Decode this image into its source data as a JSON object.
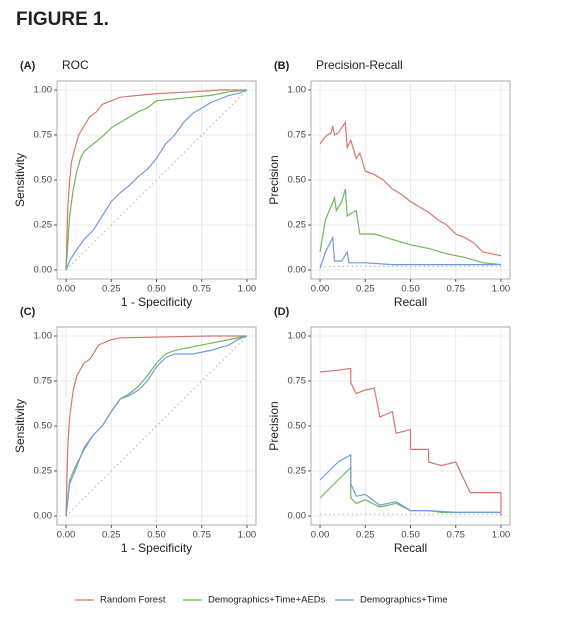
{
  "figure_title": "FIGURE 1.",
  "chart_data": [
    {
      "type": "line",
      "tag": "(A)",
      "title": "ROC",
      "x_label": "1 - Specificity",
      "y_label": "Sensitivity",
      "xlim": [
        -0.05,
        1.05
      ],
      "ylim": [
        -0.05,
        1.05
      ],
      "grid": true,
      "xticks": [
        {
          "value": 0,
          "label": "0.00"
        },
        {
          "value": 0.25,
          "label": "0.25"
        },
        {
          "value": 0.5,
          "label": "0.50"
        },
        {
          "value": 0.75,
          "label": "0.75"
        },
        {
          "value": 1,
          "label": "1.00"
        }
      ],
      "yticks": [
        {
          "value": 0,
          "label": "0.00"
        },
        {
          "value": 0.25,
          "label": "0.25"
        },
        {
          "value": 0.5,
          "label": "0.50"
        },
        {
          "value": 0.75,
          "label": "0.75"
        },
        {
          "value": 1,
          "label": "1.00"
        }
      ],
      "reference": {
        "x": [
          0,
          1
        ],
        "values": [
          0,
          1
        ]
      },
      "series": [
        {
          "name": "Random Forest",
          "color": "#d9766e",
          "x": [
            0,
            0.01,
            0.02,
            0.03,
            0.05,
            0.07,
            0.1,
            0.13,
            0.17,
            0.2,
            0.25,
            0.3,
            0.4,
            0.5,
            0.7,
            0.85,
            1
          ],
          "values": [
            0,
            0.35,
            0.5,
            0.6,
            0.68,
            0.75,
            0.8,
            0.85,
            0.88,
            0.92,
            0.94,
            0.96,
            0.97,
            0.98,
            0.99,
            1,
            1
          ]
        },
        {
          "name": "Demographics+Time+AEDs",
          "color": "#72b75a",
          "x": [
            0,
            0.02,
            0.04,
            0.06,
            0.08,
            0.1,
            0.15,
            0.2,
            0.25,
            0.3,
            0.35,
            0.4,
            0.45,
            0.5,
            0.6,
            0.7,
            0.8,
            0.9,
            1
          ],
          "values": [
            0,
            0.3,
            0.45,
            0.55,
            0.62,
            0.66,
            0.7,
            0.74,
            0.79,
            0.82,
            0.85,
            0.88,
            0.9,
            0.94,
            0.95,
            0.96,
            0.97,
            0.99,
            1
          ]
        },
        {
          "name": "Demographics+Time",
          "color": "#6f9be0",
          "x": [
            0,
            0.02,
            0.05,
            0.1,
            0.15,
            0.2,
            0.25,
            0.3,
            0.35,
            0.4,
            0.45,
            0.5,
            0.55,
            0.6,
            0.65,
            0.7,
            0.75,
            0.8,
            0.85,
            0.9,
            0.95,
            1
          ],
          "values": [
            0,
            0.05,
            0.1,
            0.17,
            0.22,
            0.3,
            0.38,
            0.43,
            0.47,
            0.52,
            0.56,
            0.62,
            0.7,
            0.75,
            0.82,
            0.87,
            0.9,
            0.93,
            0.95,
            0.97,
            0.98,
            1
          ]
        }
      ]
    },
    {
      "type": "line",
      "tag": "(B)",
      "title": "Precision-Recall",
      "x_label": "Recall",
      "y_label": "Precision",
      "xlim": [
        -0.05,
        1.05
      ],
      "ylim": [
        -0.05,
        1.05
      ],
      "grid": true,
      "xticks": [
        {
          "value": 0,
          "label": "0.00"
        },
        {
          "value": 0.25,
          "label": "0.25"
        },
        {
          "value": 0.5,
          "label": "0.50"
        },
        {
          "value": 0.75,
          "label": "0.75"
        },
        {
          "value": 1,
          "label": "1.00"
        }
      ],
      "yticks": [
        {
          "value": 0,
          "label": "0.00"
        },
        {
          "value": 0.25,
          "label": "0.25"
        },
        {
          "value": 0.5,
          "label": "0.50"
        },
        {
          "value": 0.75,
          "label": "0.75"
        },
        {
          "value": 1,
          "label": "1.00"
        }
      ],
      "reference": {
        "x": [
          0,
          1
        ],
        "values": [
          0.02,
          0.02
        ]
      },
      "series": [
        {
          "color": "#d9766e",
          "x": [
            0,
            0.02,
            0.04,
            0.06,
            0.07,
            0.08,
            0.1,
            0.14,
            0.15,
            0.17,
            0.2,
            0.22,
            0.25,
            0.3,
            0.35,
            0.4,
            0.45,
            0.5,
            0.55,
            0.6,
            0.65,
            0.7,
            0.75,
            0.8,
            0.85,
            0.9,
            0.95,
            1
          ],
          "values": [
            0.7,
            0.73,
            0.75,
            0.76,
            0.8,
            0.75,
            0.76,
            0.82,
            0.68,
            0.72,
            0.62,
            0.65,
            0.55,
            0.53,
            0.5,
            0.45,
            0.42,
            0.38,
            0.35,
            0.32,
            0.28,
            0.25,
            0.2,
            0.18,
            0.15,
            0.1,
            0.09,
            0.08
          ]
        },
        {
          "color": "#72b75a",
          "x": [
            0,
            0.03,
            0.06,
            0.08,
            0.09,
            0.12,
            0.14,
            0.15,
            0.18,
            0.2,
            0.22,
            0.3,
            0.4,
            0.5,
            0.6,
            0.7,
            0.8,
            0.9,
            1
          ],
          "values": [
            0.1,
            0.28,
            0.35,
            0.4,
            0.33,
            0.38,
            0.45,
            0.3,
            0.32,
            0.33,
            0.2,
            0.2,
            0.17,
            0.14,
            0.12,
            0.09,
            0.07,
            0.04,
            0.03
          ]
        },
        {
          "color": "#6f9be0",
          "x": [
            0,
            0.03,
            0.07,
            0.08,
            0.12,
            0.15,
            0.16,
            0.25,
            0.4,
            0.6,
            0.8,
            1
          ],
          "values": [
            0.01,
            0.1,
            0.18,
            0.05,
            0.05,
            0.1,
            0.04,
            0.04,
            0.03,
            0.03,
            0.03,
            0.03
          ]
        }
      ]
    },
    {
      "type": "line",
      "tag": "(C)",
      "x_label": "1 - Specificity",
      "y_label": "Sensitivity",
      "xlim": [
        -0.05,
        1.05
      ],
      "ylim": [
        -0.05,
        1.05
      ],
      "grid": true,
      "xticks": [
        {
          "value": 0,
          "label": "0.00"
        },
        {
          "value": 0.25,
          "label": "0.25"
        },
        {
          "value": 0.5,
          "label": "0.50"
        },
        {
          "value": 0.75,
          "label": "0.75"
        },
        {
          "value": 1,
          "label": "1.00"
        }
      ],
      "yticks": [
        {
          "value": 0,
          "label": "0.00"
        },
        {
          "value": 0.25,
          "label": "0.25"
        },
        {
          "value": 0.5,
          "label": "0.50"
        },
        {
          "value": 0.75,
          "label": "0.75"
        },
        {
          "value": 1,
          "label": "1.00"
        }
      ],
      "reference": {
        "x": [
          0,
          1
        ],
        "values": [
          0,
          1
        ]
      },
      "series": [
        {
          "color": "#d9766e",
          "x": [
            0,
            0.01,
            0.02,
            0.04,
            0.06,
            0.1,
            0.13,
            0.15,
            0.18,
            0.25,
            0.3,
            0.8,
            1
          ],
          "values": [
            0,
            0.4,
            0.55,
            0.7,
            0.78,
            0.85,
            0.87,
            0.9,
            0.95,
            0.98,
            0.99,
            1,
            1
          ]
        },
        {
          "color": "#72b75a",
          "x": [
            0,
            0.02,
            0.05,
            0.08,
            0.1,
            0.15,
            0.2,
            0.25,
            0.3,
            0.35,
            0.4,
            0.45,
            0.5,
            0.55,
            0.6,
            0.7,
            0.8,
            0.9,
            1
          ],
          "values": [
            0,
            0.2,
            0.27,
            0.33,
            0.38,
            0.45,
            0.5,
            0.58,
            0.65,
            0.68,
            0.72,
            0.78,
            0.85,
            0.9,
            0.92,
            0.94,
            0.96,
            0.98,
            1
          ]
        },
        {
          "color": "#6f9be0",
          "x": [
            0,
            0.02,
            0.05,
            0.08,
            0.1,
            0.15,
            0.2,
            0.25,
            0.3,
            0.35,
            0.4,
            0.45,
            0.5,
            0.55,
            0.6,
            0.7,
            0.8,
            0.9,
            0.95,
            1
          ],
          "values": [
            0,
            0.18,
            0.25,
            0.33,
            0.37,
            0.45,
            0.5,
            0.58,
            0.65,
            0.67,
            0.7,
            0.75,
            0.83,
            0.88,
            0.9,
            0.9,
            0.92,
            0.95,
            0.98,
            1
          ]
        }
      ]
    },
    {
      "type": "line",
      "tag": "(D)",
      "x_label": "Recall",
      "y_label": "Precision",
      "xlim": [
        -0.05,
        1.05
      ],
      "ylim": [
        -0.05,
        1.05
      ],
      "grid": true,
      "xticks": [
        {
          "value": 0,
          "label": "0.00"
        },
        {
          "value": 0.25,
          "label": "0.25"
        },
        {
          "value": 0.5,
          "label": "0.50"
        },
        {
          "value": 0.75,
          "label": "0.75"
        },
        {
          "value": 1,
          "label": "1.00"
        }
      ],
      "yticks": [
        {
          "value": 0,
          "label": "0.00"
        },
        {
          "value": 0.25,
          "label": "0.25"
        },
        {
          "value": 0.5,
          "label": "0.50"
        },
        {
          "value": 0.75,
          "label": "0.75"
        },
        {
          "value": 1,
          "label": "1.00"
        }
      ],
      "reference": {
        "x": [
          0,
          1
        ],
        "values": [
          0.01,
          0.01
        ]
      },
      "series": [
        {
          "color": "#d9766e",
          "x": [
            0,
            0.1,
            0.17,
            0.17,
            0.2,
            0.25,
            0.3,
            0.33,
            0.4,
            0.42,
            0.5,
            0.5,
            0.6,
            0.6,
            0.67,
            0.75,
            0.83,
            0.9,
            1,
            1
          ],
          "values": [
            0.8,
            0.81,
            0.82,
            0.74,
            0.68,
            0.7,
            0.71,
            0.55,
            0.58,
            0.46,
            0.48,
            0.37,
            0.37,
            0.3,
            0.28,
            0.3,
            0.13,
            0.13,
            0.13,
            0
          ]
        },
        {
          "color": "#72b75a",
          "x": [
            0,
            0.1,
            0.17,
            0.17,
            0.2,
            0.25,
            0.33,
            0.42,
            0.5,
            0.6,
            0.67,
            1
          ],
          "values": [
            0.1,
            0.2,
            0.27,
            0.1,
            0.07,
            0.09,
            0.05,
            0.07,
            0.03,
            0.03,
            0.02,
            0.02
          ]
        },
        {
          "color": "#6f9be0",
          "x": [
            0,
            0.1,
            0.17,
            0.17,
            0.2,
            0.25,
            0.33,
            0.42,
            0.5,
            0.6,
            0.75,
            1
          ],
          "values": [
            0.2,
            0.3,
            0.34,
            0.18,
            0.11,
            0.12,
            0.06,
            0.08,
            0.03,
            0.03,
            0.02,
            0.02
          ]
        }
      ]
    }
  ]
}
